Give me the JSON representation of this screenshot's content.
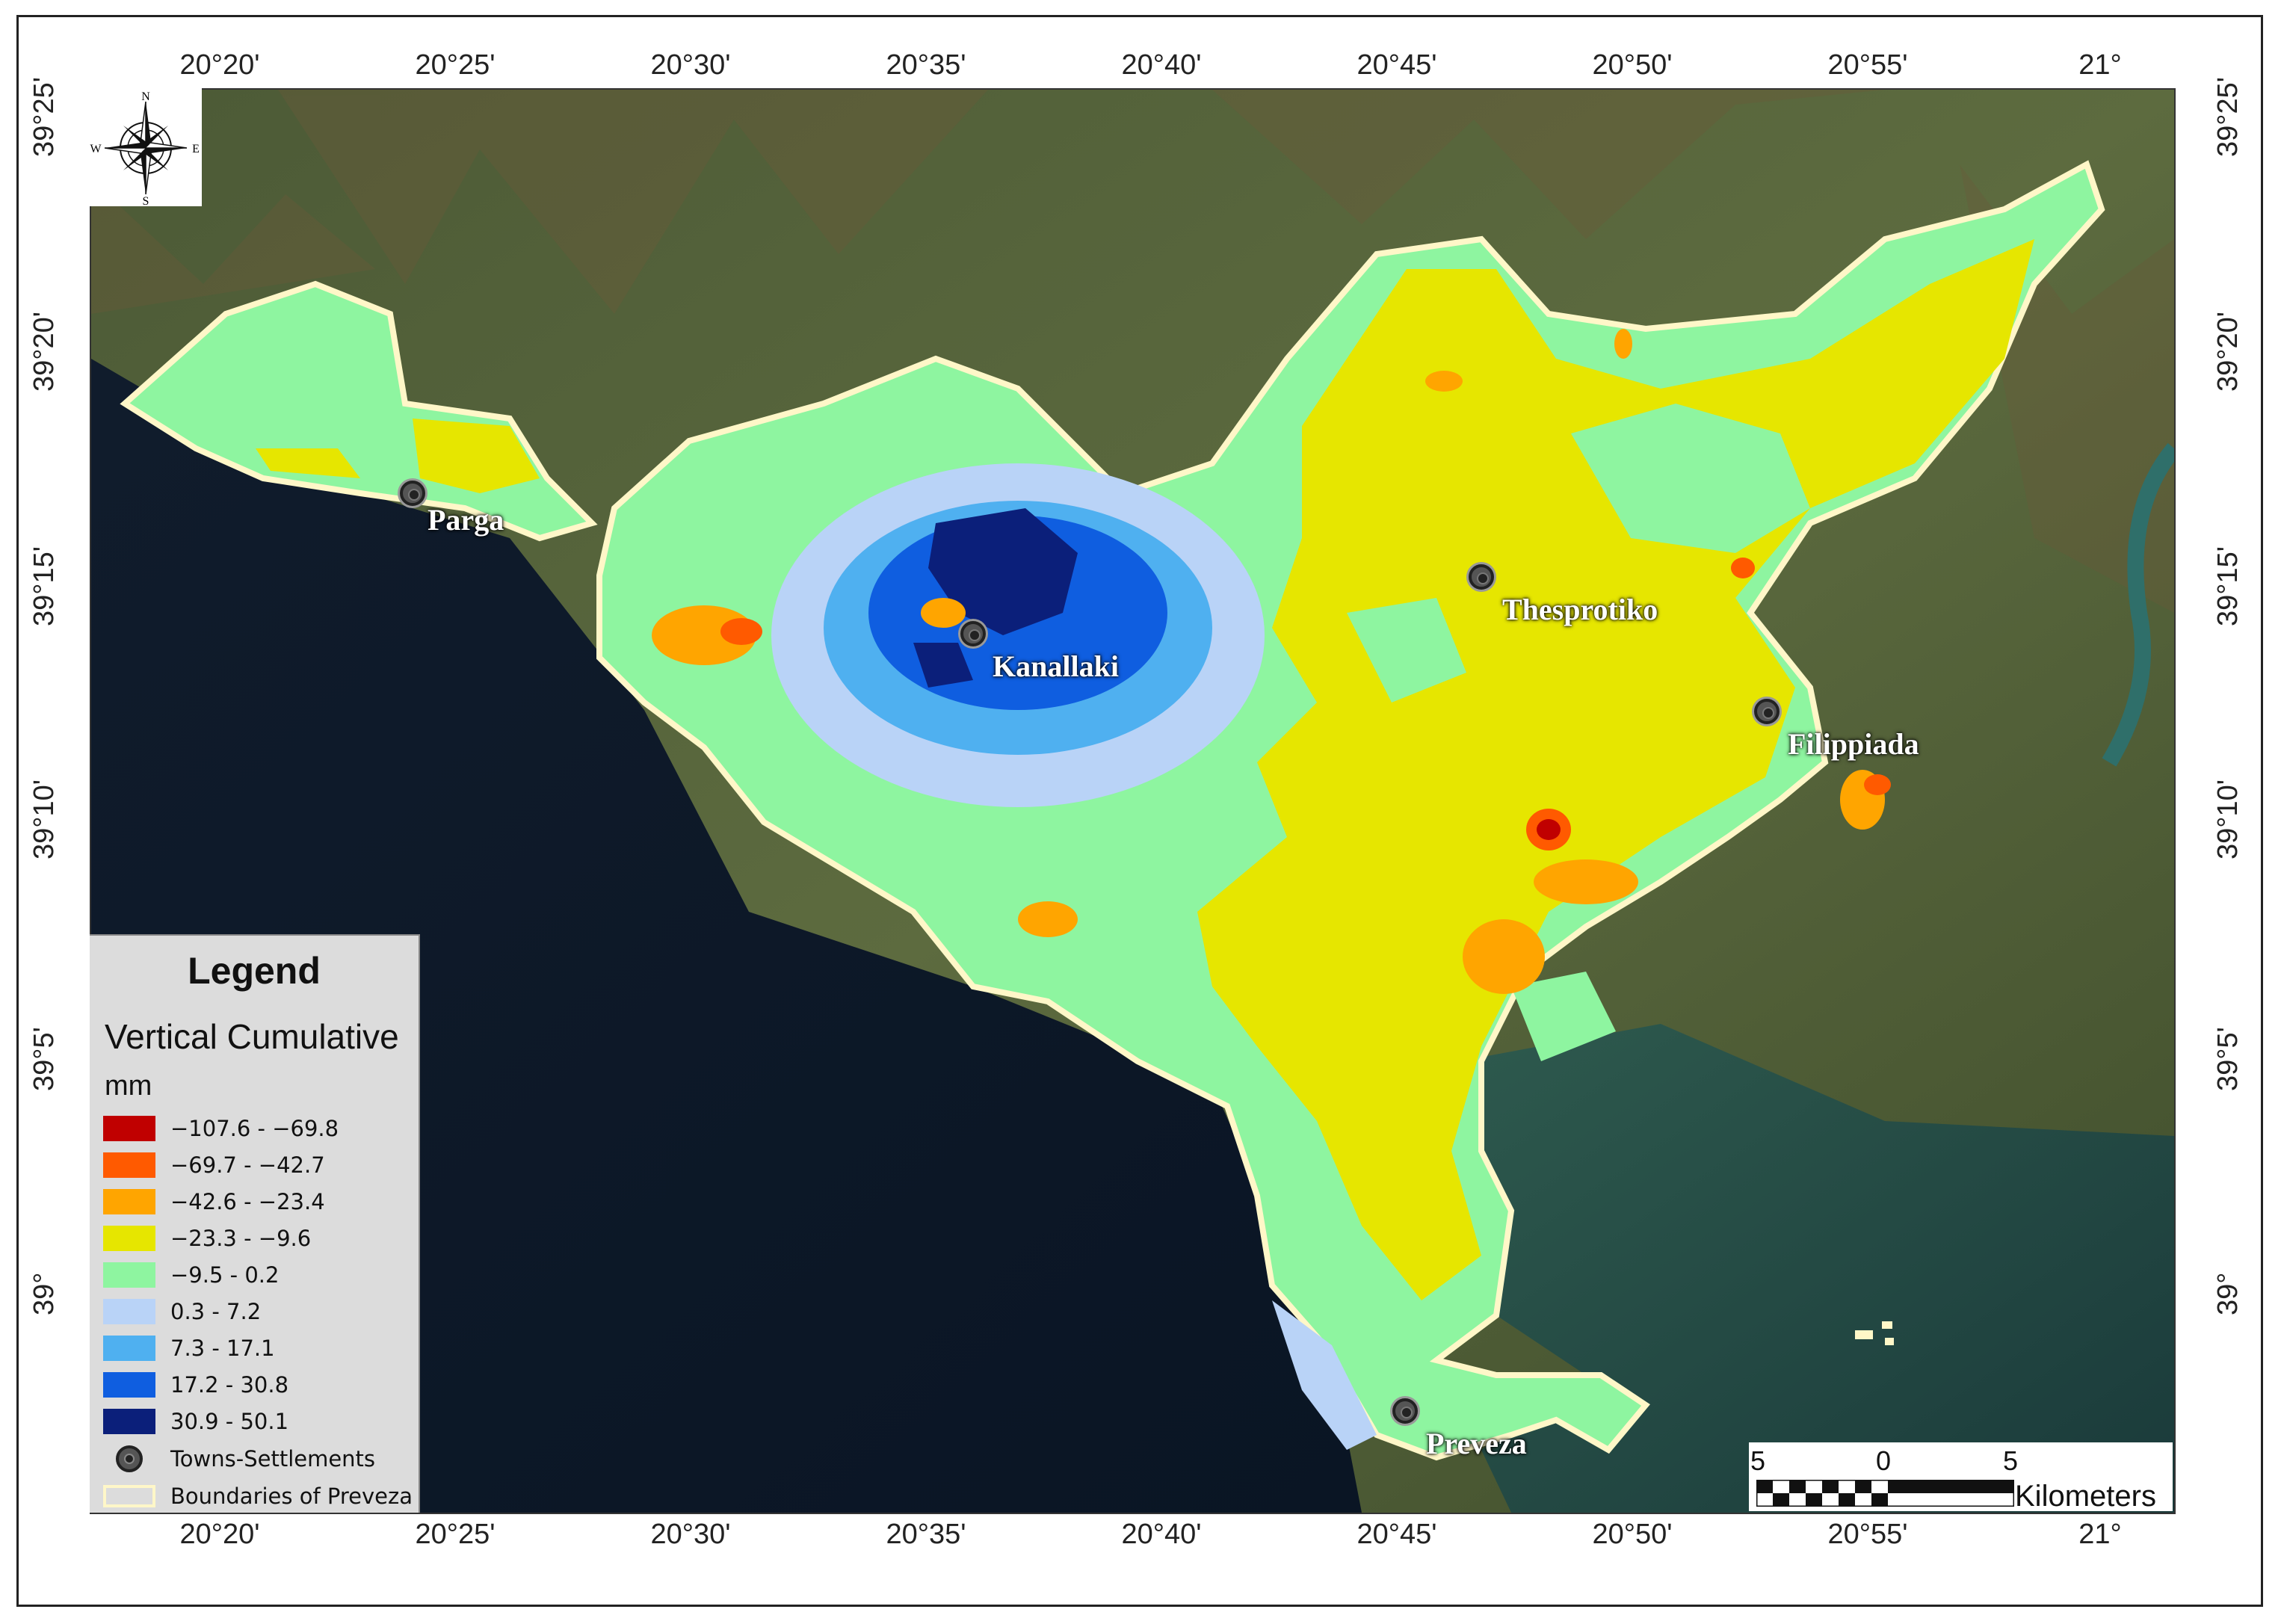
{
  "map": {
    "top_ticks": [
      "20°20'",
      "20°25'",
      "20°30'",
      "20°35'",
      "20°40'",
      "20°45'",
      "20°50'",
      "20°55'",
      "21°"
    ],
    "bottom_ticks": [
      "20°20'",
      "20°25'",
      "20°30'",
      "20°35'",
      "20°40'",
      "20°45'",
      "20°50'",
      "20°55'",
      "21°"
    ],
    "left_ticks": [
      "39°25'",
      "39°20'",
      "39°15'",
      "39°10'",
      "39°5'",
      "39°"
    ],
    "right_ticks": [
      "39°25'",
      "39°20'",
      "39°15'",
      "39°10'",
      "39°5'",
      "39°"
    ],
    "towns": [
      {
        "name": "Parga"
      },
      {
        "name": "Kanallaki"
      },
      {
        "name": "Thesprotiko"
      },
      {
        "name": "Filippiada"
      },
      {
        "name": "Preveza"
      }
    ],
    "compass": {
      "n": "N",
      "s": "S",
      "e": "E",
      "w": "W",
      "icon": "compass-rose-icon"
    }
  },
  "legend": {
    "title": "Legend",
    "subtitle": "Vertical Cumulative",
    "units": "mm",
    "classes": [
      {
        "label": "−107.6 - −69.8",
        "color": "#c00000"
      },
      {
        "label": "−69.7 - −42.7",
        "color": "#ff5a00"
      },
      {
        "label": "−42.6 - −23.4",
        "color": "#ffa500"
      },
      {
        "label": "−23.3 - −9.6",
        "color": "#e6e600"
      },
      {
        "label": "−9.5 - 0.2",
        "color": "#8ef5a0"
      },
      {
        "label": "0.3 - 7.2",
        "color": "#b9d3f7"
      },
      {
        "label": "7.3 - 17.1",
        "color": "#4fb0f0"
      },
      {
        "label": "17.2 - 30.8",
        "color": "#0f5ee0"
      },
      {
        "label": "30.9 - 50.1",
        "color": "#0b1f7a"
      }
    ],
    "towns_label": "Towns-Settlements",
    "boundary_label": "Boundaries of Preveza"
  },
  "scalebar": {
    "left": "5",
    "mid": "0",
    "right": "5",
    "unit": "Kilometers"
  }
}
